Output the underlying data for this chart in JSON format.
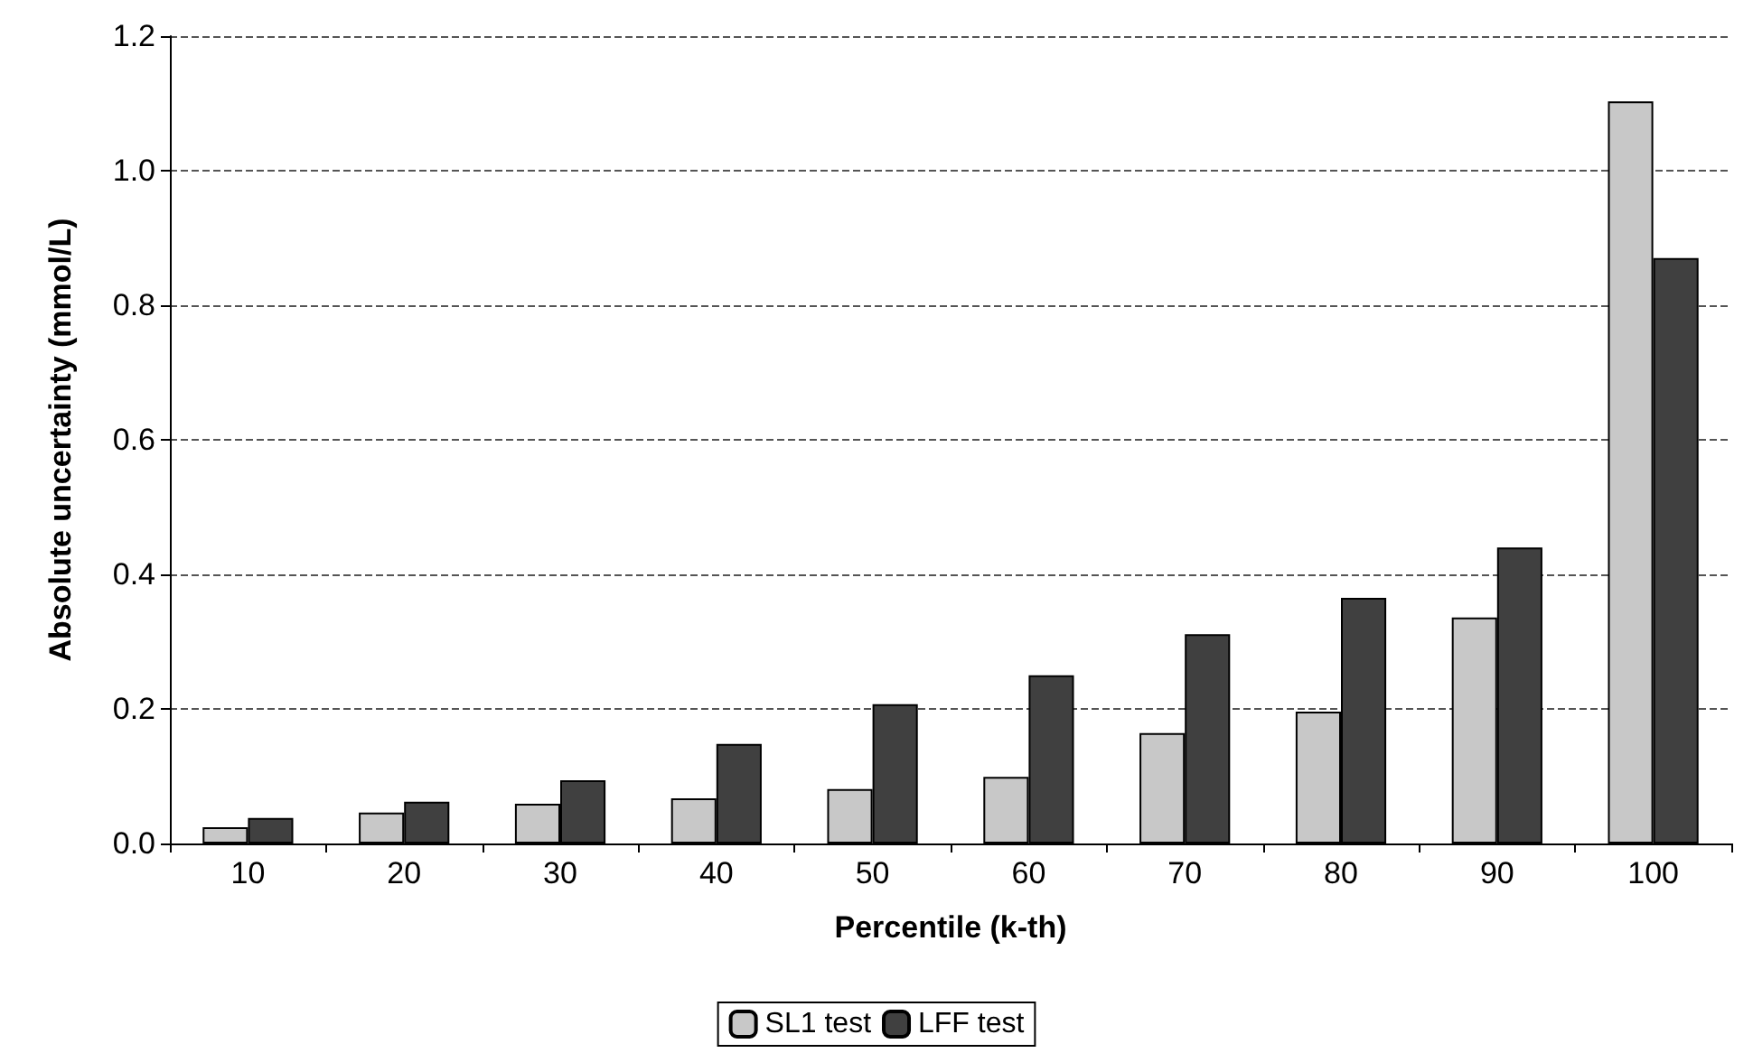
{
  "chart_data": {
    "type": "bar",
    "xlabel": "Percentile (k-th)",
    "ylabel": "Absolute uncertainty (mmol/L)",
    "categories": [
      "10",
      "20",
      "30",
      "40",
      "50",
      "60",
      "70",
      "80",
      "90",
      "100"
    ],
    "series": [
      {
        "name": "SL1 test",
        "color": "#c8c8c8",
        "values": [
          0.024,
          0.046,
          0.059,
          0.067,
          0.081,
          0.099,
          0.164,
          0.196,
          0.336,
          1.103
        ]
      },
      {
        "name": "LFF test",
        "color": "#404040",
        "values": [
          0.038,
          0.062,
          0.094,
          0.148,
          0.207,
          0.25,
          0.311,
          0.365,
          0.44,
          0.87
        ]
      }
    ],
    "ylim": [
      0,
      1.2
    ],
    "yticks": [
      {
        "value": 0,
        "label": "0.0"
      },
      {
        "value": 0.2,
        "label": "0.2"
      },
      {
        "value": 0.4,
        "label": "0.4"
      },
      {
        "value": 0.6,
        "label": "0.6"
      },
      {
        "value": 0.8,
        "label": "0.8"
      },
      {
        "value": 1,
        "label": "1.0"
      },
      {
        "value": 1.2,
        "label": "1.2"
      }
    ],
    "grid": "y",
    "legend": "bottom"
  }
}
